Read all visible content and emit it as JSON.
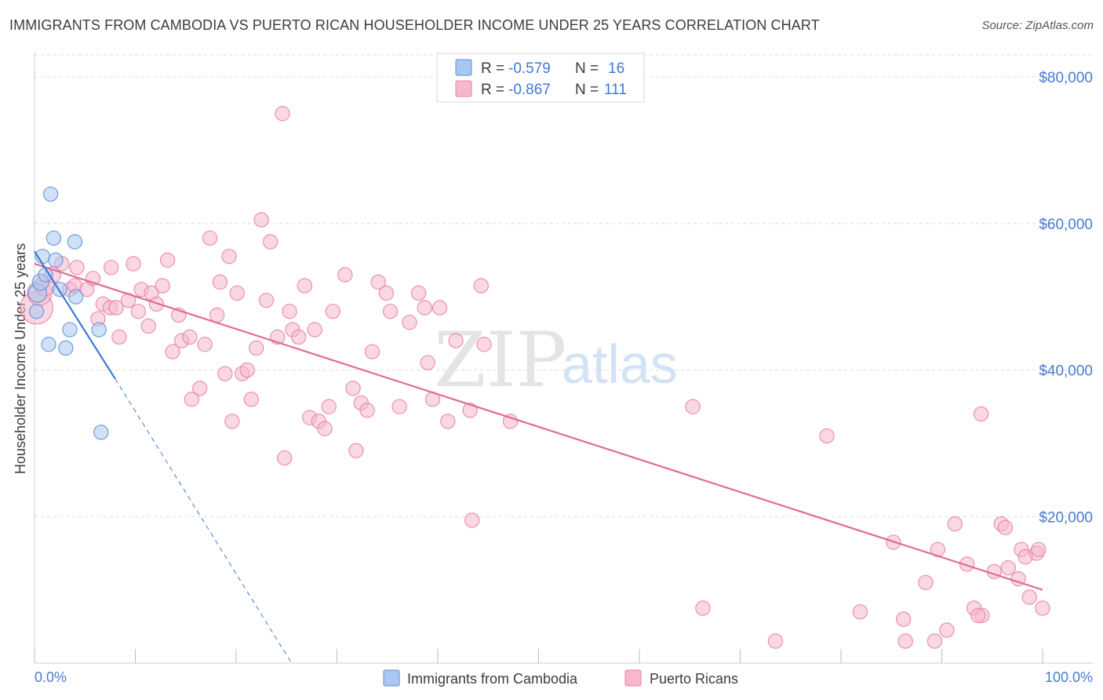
{
  "title": "IMMIGRANTS FROM CAMBODIA VS PUERTO RICAN HOUSEHOLDER INCOME UNDER 25 YEARS CORRELATION CHART",
  "source": "Source: ZipAtlas.com",
  "watermark": {
    "zip": "ZIP",
    "atlas": "atlas"
  },
  "colors": {
    "cambodia_fill": "#a9c8f0",
    "cambodia_stroke": "#5b8fd6",
    "cambodia_line": "#3a7bd5",
    "pr_fill": "#f6b8cc",
    "pr_stroke": "#e87fa2",
    "pr_line": "#e06b96",
    "grid": "#dddddd",
    "axis_label": "#4a7bd0"
  },
  "legend": {
    "rows": [
      {
        "r_label": "R = ",
        "r_value": "-0.579",
        "n_label": "N = ",
        "n_value": "16"
      },
      {
        "r_label": "R = ",
        "r_value": "-0.867",
        "n_label": "N = ",
        "n_value": "111"
      }
    ]
  },
  "bottom_legend": [
    "Immigrants from Cambodia",
    "Puerto Ricans"
  ],
  "chart_data": {
    "type": "scatter",
    "title": "IMMIGRANTS FROM CAMBODIA VS PUERTO RICAN HOUSEHOLDER INCOME UNDER 25 YEARS CORRELATION CHART",
    "xlabel": "",
    "ylabel": "Householder Income Under 25 years",
    "xlim": [
      0,
      100
    ],
    "ylim": [
      0,
      83000
    ],
    "x_tick_labels": [
      "0.0%",
      "100.0%"
    ],
    "y_ticks": [
      20000,
      40000,
      60000,
      80000
    ],
    "y_tick_labels": [
      "$20,000",
      "$40,000",
      "$60,000",
      "$80,000"
    ],
    "grid": "horizontal dashed",
    "legend_position": "top-center",
    "series": [
      {
        "name": "Immigrants from Cambodia",
        "r": -0.579,
        "n": 16,
        "points": [
          [
            0.3,
            50500,
            9
          ],
          [
            0.6,
            52000,
            8
          ],
          [
            0.8,
            55500,
            7
          ],
          [
            1.1,
            53000,
            7
          ],
          [
            1.4,
            43500,
            7
          ],
          [
            1.6,
            64000,
            7
          ],
          [
            1.9,
            58000,
            7
          ],
          [
            2.1,
            55000,
            7
          ],
          [
            2.5,
            51000,
            7
          ],
          [
            3.1,
            43000,
            7
          ],
          [
            3.5,
            45500,
            7
          ],
          [
            4.0,
            57500,
            7
          ],
          [
            4.1,
            50000,
            7
          ],
          [
            6.4,
            45500,
            7
          ],
          [
            6.6,
            31500,
            7
          ],
          [
            0.2,
            48000,
            7
          ]
        ],
        "trend": {
          "x": [
            0,
            8
          ],
          "y": [
            56200,
            38800
          ]
        },
        "trend_extension": {
          "x": [
            8,
            25.5
          ],
          "y": [
            38800,
            0
          ]
        }
      },
      {
        "name": "Puerto Ricans",
        "r": -0.867,
        "n": 111,
        "points": [
          [
            0.2,
            48500,
            16
          ],
          [
            0.5,
            50500,
            12
          ],
          [
            1.0,
            51500,
            10
          ],
          [
            1.8,
            53000,
            8
          ],
          [
            2.7,
            54500,
            7
          ],
          [
            3.5,
            51000,
            7
          ],
          [
            4.0,
            51500,
            7
          ],
          [
            4.2,
            54000,
            7
          ],
          [
            5.2,
            51000,
            7
          ],
          [
            5.8,
            52500,
            7
          ],
          [
            6.3,
            47000,
            7
          ],
          [
            6.8,
            49000,
            7
          ],
          [
            7.5,
            48500,
            7
          ],
          [
            7.6,
            54000,
            7
          ],
          [
            8.1,
            48500,
            7
          ],
          [
            8.4,
            44500,
            7
          ],
          [
            9.3,
            49500,
            7
          ],
          [
            9.8,
            54500,
            7
          ],
          [
            10.3,
            48000,
            7
          ],
          [
            10.6,
            51000,
            7
          ],
          [
            11.3,
            46000,
            7
          ],
          [
            11.6,
            50500,
            7
          ],
          [
            12.1,
            49000,
            7
          ],
          [
            12.7,
            51500,
            7
          ],
          [
            13.2,
            55000,
            7
          ],
          [
            13.7,
            42500,
            7
          ],
          [
            14.3,
            47500,
            7
          ],
          [
            14.6,
            44000,
            7
          ],
          [
            15.4,
            44500,
            7
          ],
          [
            15.6,
            36000,
            7
          ],
          [
            16.4,
            37500,
            7
          ],
          [
            16.9,
            43500,
            7
          ],
          [
            17.4,
            58000,
            7
          ],
          [
            18.1,
            47500,
            7
          ],
          [
            18.4,
            52000,
            7
          ],
          [
            18.9,
            39500,
            7
          ],
          [
            19.3,
            55500,
            7
          ],
          [
            19.6,
            33000,
            7
          ],
          [
            20.1,
            50500,
            7
          ],
          [
            20.6,
            39500,
            7
          ],
          [
            21.1,
            40000,
            7
          ],
          [
            21.5,
            36000,
            7
          ],
          [
            22.0,
            43000,
            7
          ],
          [
            22.5,
            60500,
            7
          ],
          [
            23.0,
            49500,
            7
          ],
          [
            23.4,
            57500,
            7
          ],
          [
            24.1,
            44500,
            7
          ],
          [
            24.6,
            75000,
            7
          ],
          [
            24.8,
            28000,
            7
          ],
          [
            25.3,
            48000,
            7
          ],
          [
            25.6,
            45500,
            7
          ],
          [
            26.2,
            44500,
            7
          ],
          [
            26.8,
            51500,
            7
          ],
          [
            27.3,
            33500,
            7
          ],
          [
            27.8,
            45500,
            7
          ],
          [
            28.2,
            33000,
            7
          ],
          [
            28.8,
            32000,
            7
          ],
          [
            29.2,
            35000,
            7
          ],
          [
            29.6,
            48000,
            7
          ],
          [
            30.8,
            53000,
            7
          ],
          [
            31.6,
            37500,
            7
          ],
          [
            31.9,
            29000,
            7
          ],
          [
            32.4,
            35500,
            7
          ],
          [
            33.0,
            34500,
            7
          ],
          [
            33.5,
            42500,
            7
          ],
          [
            34.1,
            52000,
            7
          ],
          [
            34.9,
            50500,
            7
          ],
          [
            35.3,
            48000,
            7
          ],
          [
            36.2,
            35000,
            7
          ],
          [
            37.2,
            46500,
            7
          ],
          [
            38.1,
            50500,
            7
          ],
          [
            38.7,
            48500,
            7
          ],
          [
            39.0,
            41000,
            7
          ],
          [
            39.5,
            36000,
            7
          ],
          [
            40.2,
            48500,
            7
          ],
          [
            41.0,
            33000,
            7
          ],
          [
            41.8,
            44000,
            7
          ],
          [
            43.2,
            34500,
            7
          ],
          [
            43.4,
            19500,
            7
          ],
          [
            44.3,
            51500,
            7
          ],
          [
            44.6,
            43500,
            7
          ],
          [
            47.2,
            33000,
            7
          ],
          [
            65.3,
            35000,
            7
          ],
          [
            66.3,
            7500,
            7
          ],
          [
            73.5,
            3000,
            7
          ],
          [
            78.6,
            31000,
            7
          ],
          [
            81.9,
            7000,
            7
          ],
          [
            85.2,
            16500,
            7
          ],
          [
            86.2,
            6000,
            7
          ],
          [
            86.4,
            3000,
            7
          ],
          [
            88.4,
            11000,
            7
          ],
          [
            89.3,
            3000,
            7
          ],
          [
            89.6,
            15500,
            7
          ],
          [
            90.5,
            4500,
            7
          ],
          [
            91.3,
            19000,
            7
          ],
          [
            92.5,
            13500,
            7
          ],
          [
            93.2,
            7500,
            7
          ],
          [
            93.9,
            34000,
            7
          ],
          [
            94.0,
            6500,
            7
          ],
          [
            95.2,
            12500,
            7
          ],
          [
            95.9,
            19000,
            7
          ],
          [
            96.3,
            18500,
            7
          ],
          [
            96.6,
            13000,
            7
          ],
          [
            97.6,
            11500,
            7
          ],
          [
            97.9,
            15500,
            7
          ],
          [
            98.3,
            14500,
            7
          ],
          [
            98.7,
            9000,
            7
          ],
          [
            99.4,
            15000,
            7
          ],
          [
            99.6,
            15500,
            7
          ],
          [
            100.0,
            7500,
            7
          ],
          [
            93.6,
            6500,
            7
          ]
        ],
        "trend": {
          "x": [
            0,
            100
          ],
          "y": [
            54500,
            10000
          ]
        }
      }
    ]
  }
}
